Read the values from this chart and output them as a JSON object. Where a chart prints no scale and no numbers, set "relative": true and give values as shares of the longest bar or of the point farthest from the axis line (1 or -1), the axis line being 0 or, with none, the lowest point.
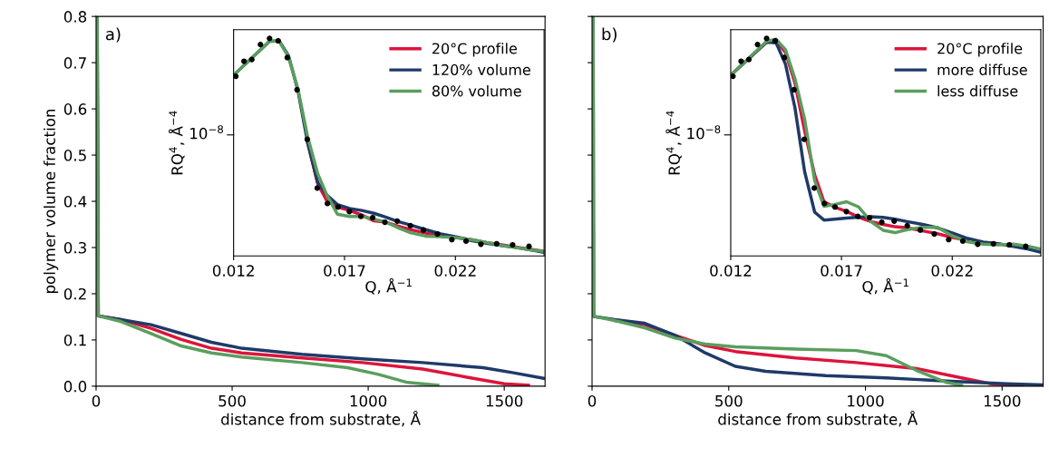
{
  "chart_data": [
    {
      "type": "line",
      "xlabel": "distance from substrate, Å",
      "ylabel": "polymer volume fraction",
      "annotations": [
        "a)"
      ],
      "xlim": [
        0,
        1650
      ],
      "xticks": [
        0,
        500,
        1000,
        1500
      ],
      "ylim": [
        0,
        0.8
      ],
      "yticks": [
        {
          "value": 0,
          "label": "0.0"
        },
        0.1,
        0.2,
        0.3,
        0.4,
        0.5,
        0.6,
        0.7,
        0.8
      ],
      "grid": false,
      "legend": false,
      "series": [
        {
          "color": "#dc143c",
          "x": [
            4,
            8,
            91,
            202,
            313,
            424,
            535,
            757,
            979,
            1200,
            1367,
            1500,
            1589
          ],
          "values": [
            0.8,
            0.152,
            0.144,
            0.125,
            0.101,
            0.082,
            0.072,
            0.061,
            0.051,
            0.037,
            0.019,
            0.005,
            0.002
          ]
        },
        {
          "color": "#1f3a68",
          "x": [
            4,
            8,
            91,
            202,
            313,
            424,
            535,
            757,
            979,
            1200,
            1423,
            1534,
            1644
          ],
          "values": [
            0.8,
            0.152,
            0.144,
            0.133,
            0.114,
            0.095,
            0.082,
            0.069,
            0.059,
            0.051,
            0.04,
            0.029,
            0.017
          ]
        },
        {
          "color": "#5a9e5e",
          "x": [
            4,
            8,
            91,
            202,
            313,
            424,
            535,
            757,
            924,
            1034,
            1145,
            1256
          ],
          "values": [
            0.8,
            0.152,
            0.14,
            0.114,
            0.087,
            0.072,
            0.063,
            0.051,
            0.04,
            0.026,
            0.008,
            0.002
          ]
        }
      ]
    },
    {
      "type": "line",
      "relative": true,
      "xlabel": "Q, Å$^{−1}$",
      "ylabel": "RQ$^{4}$, Å$^{−4}$",
      "annotations": [
        "10$^{−8}$"
      ],
      "xlim": [
        0.012,
        0.026
      ],
      "xticks": [
        0.012,
        0.017,
        0.022
      ],
      "legend": "top right",
      "x": [
        0.012,
        0.01362,
        0.01405,
        0.01447,
        0.0149,
        0.01534,
        0.01579,
        0.01621,
        0.01668,
        0.01723,
        0.01778,
        0.01833,
        0.01888,
        0.01942,
        0.01997,
        0.02066,
        0.02134,
        0.02203,
        0.02271,
        0.0234,
        0.02408,
        0.02477,
        0.02545,
        0.026
      ],
      "series": [
        {
          "name": "20°C profile",
          "color": "#dc143c",
          "values": [
            null,
            null,
            null,
            null,
            null,
            0.52,
            0.332,
            0.252,
            0.225,
            0.209,
            0.188,
            0.161,
            0.155,
            0.137,
            0.121,
            0.105,
            0.091,
            0.084,
            0.075,
            0.062,
            0.051,
            0.04,
            0.029,
            0.021
          ]
        },
        {
          "name": "120% volume",
          "color": "#1f3a68",
          "values": [
            0.831,
            0.987,
            0.989,
            0.922,
            0.761,
            0.52,
            0.339,
            0.279,
            0.236,
            0.218,
            0.209,
            0.196,
            0.178,
            0.158,
            0.142,
            0.121,
            0.101,
            0.088,
            0.071,
            0.058,
            0.048,
            0.038,
            0.027,
            0.016
          ]
        },
        {
          "name": "80% volume",
          "color": "#5a9e5e",
          "values": [
            0.831,
            0.987,
            0.987,
            0.916,
            0.768,
            0.547,
            0.379,
            0.279,
            0.192,
            0.181,
            0.182,
            0.169,
            0.155,
            0.129,
            0.107,
            0.091,
            0.088,
            0.084,
            0.075,
            0.062,
            0.048,
            0.038,
            0.027,
            0.021
          ]
        },
        {
          "type": "scatter",
          "color": "#000000",
          "x": [
            0.0121,
            0.01247,
            0.01282,
            0.01321,
            0.01362,
            0.01401,
            0.01442,
            0.01486,
            0.01532,
            0.01577,
            0.01623,
            0.01671,
            0.01722,
            0.01774,
            0.01827,
            0.01882,
            0.01938,
            0.01997,
            0.02056,
            0.02119,
            0.02184,
            0.02248,
            0.02315,
            0.02386,
            0.02458,
            0.02532
          ],
          "values": [
            0.826,
            0.895,
            0.903,
            0.972,
            1.0,
            0.989,
            0.912,
            0.764,
            0.536,
            0.312,
            0.241,
            0.225,
            0.204,
            0.182,
            0.176,
            0.155,
            0.16,
            0.139,
            0.119,
            0.101,
            0.075,
            0.068,
            0.054,
            0.056,
            0.051,
            0.044
          ]
        }
      ]
    },
    {
      "type": "line",
      "xlabel": "distance from substrate, Å",
      "annotations": [
        "b)"
      ],
      "xlim": [
        0,
        1650
      ],
      "xticks": [
        0,
        500,
        1000,
        1500
      ],
      "ylim": [
        0,
        0.8
      ],
      "yticks": [
        0,
        0.1,
        0.2,
        0.3,
        0.4,
        0.5,
        0.6,
        0.7,
        0.8
      ],
      "tick_labels": "x",
      "grid": false,
      "legend": false,
      "series": [
        {
          "color": "#dc143c",
          "x": [
            83,
            193,
            304,
            414,
            524,
            745,
            966,
            1187,
            1352,
            1462,
            1573
          ],
          "values": [
            0.142,
            0.133,
            0.11,
            0.088,
            0.075,
            0.061,
            0.051,
            0.038,
            0.018,
            0.005,
            0.002
          ]
        },
        {
          "color": "#1f3a68",
          "x": [
            4,
            6,
            83,
            193,
            304,
            414,
            524,
            635,
            855,
            1076,
            1297,
            1518,
            1645
          ],
          "values": [
            0.8,
            0.151,
            0.144,
            0.136,
            0.11,
            0.072,
            0.043,
            0.032,
            0.023,
            0.018,
            0.011,
            0.005,
            0.003
          ]
        },
        {
          "color": "#5a9e5e",
          "x": [
            4,
            6,
            83,
            193,
            304,
            414,
            524,
            745,
            966,
            1076,
            1187,
            1297,
            1352
          ],
          "values": [
            0.8,
            0.151,
            0.142,
            0.126,
            0.104,
            0.091,
            0.085,
            0.08,
            0.077,
            0.066,
            0.034,
            0.008,
            0.002
          ]
        }
      ]
    },
    {
      "type": "line",
      "relative": true,
      "xlabel": "Q, Å$^{−1}$",
      "ylabel": "RQ$^{4}$, Å$^{−4}$",
      "annotations": [
        "10$^{−8}$"
      ],
      "xlim": [
        0.012,
        0.026
      ],
      "xticks": [
        0.012,
        0.017,
        0.022
      ],
      "legend": "top right",
      "x": [
        0.012,
        0.01362,
        0.01405,
        0.01447,
        0.0149,
        0.01534,
        0.01579,
        0.01621,
        0.01668,
        0.01723,
        0.01778,
        0.01833,
        0.01888,
        0.01942,
        0.01997,
        0.02066,
        0.02134,
        0.02203,
        0.02271,
        0.0234,
        0.02408,
        0.02477,
        0.02545,
        0.026
      ],
      "series": [
        {
          "name": "20°C profile",
          "color": "#dc143c",
          "values": [
            0.831,
            0.983,
            0.987,
            0.936,
            0.795,
            0.574,
            0.373,
            0.249,
            0.225,
            0.205,
            0.178,
            0.158,
            0.145,
            0.134,
            0.129,
            0.115,
            0.102,
            0.084,
            0.071,
            null,
            null,
            null,
            null,
            null
          ]
        },
        {
          "name": "more diffuse",
          "color": "#1f3a68",
          "values": [
            0.831,
            0.983,
            0.979,
            0.882,
            0.681,
            0.386,
            0.201,
            0.165,
            0.169,
            0.174,
            0.178,
            0.18,
            0.177,
            0.169,
            0.158,
            0.145,
            0.129,
            0.105,
            0.08,
            0.064,
            0.056,
            0.044,
            0.031,
            0.017
          ]
        },
        {
          "name": "less diffuse",
          "color": "#5a9e5e",
          "values": [
            0.831,
            0.987,
            0.996,
            0.949,
            0.815,
            0.627,
            0.346,
            0.228,
            0.236,
            0.249,
            0.225,
            0.158,
            0.118,
            0.107,
            0.121,
            0.131,
            0.131,
            0.091,
            0.064,
            0.054,
            0.051,
            0.054,
            0.044,
            0.031
          ]
        },
        {
          "type": "scatter",
          "color": "#000000",
          "x": [
            0.0121,
            0.01247,
            0.01282,
            0.01321,
            0.01362,
            0.01401,
            0.01442,
            0.01486,
            0.01532,
            0.01577,
            0.01623,
            0.01671,
            0.01722,
            0.01774,
            0.01827,
            0.01882,
            0.01938,
            0.01997,
            0.02056,
            0.02119,
            0.02184,
            0.02248,
            0.02315,
            0.02386,
            0.02458,
            0.02532
          ],
          "values": [
            0.826,
            0.895,
            0.903,
            0.972,
            1.0,
            0.989,
            0.912,
            0.764,
            0.536,
            0.312,
            0.241,
            0.225,
            0.204,
            0.182,
            0.176,
            0.155,
            0.16,
            0.139,
            0.119,
            0.101,
            0.075,
            0.068,
            0.054,
            0.056,
            0.051,
            0.044
          ]
        }
      ]
    }
  ]
}
